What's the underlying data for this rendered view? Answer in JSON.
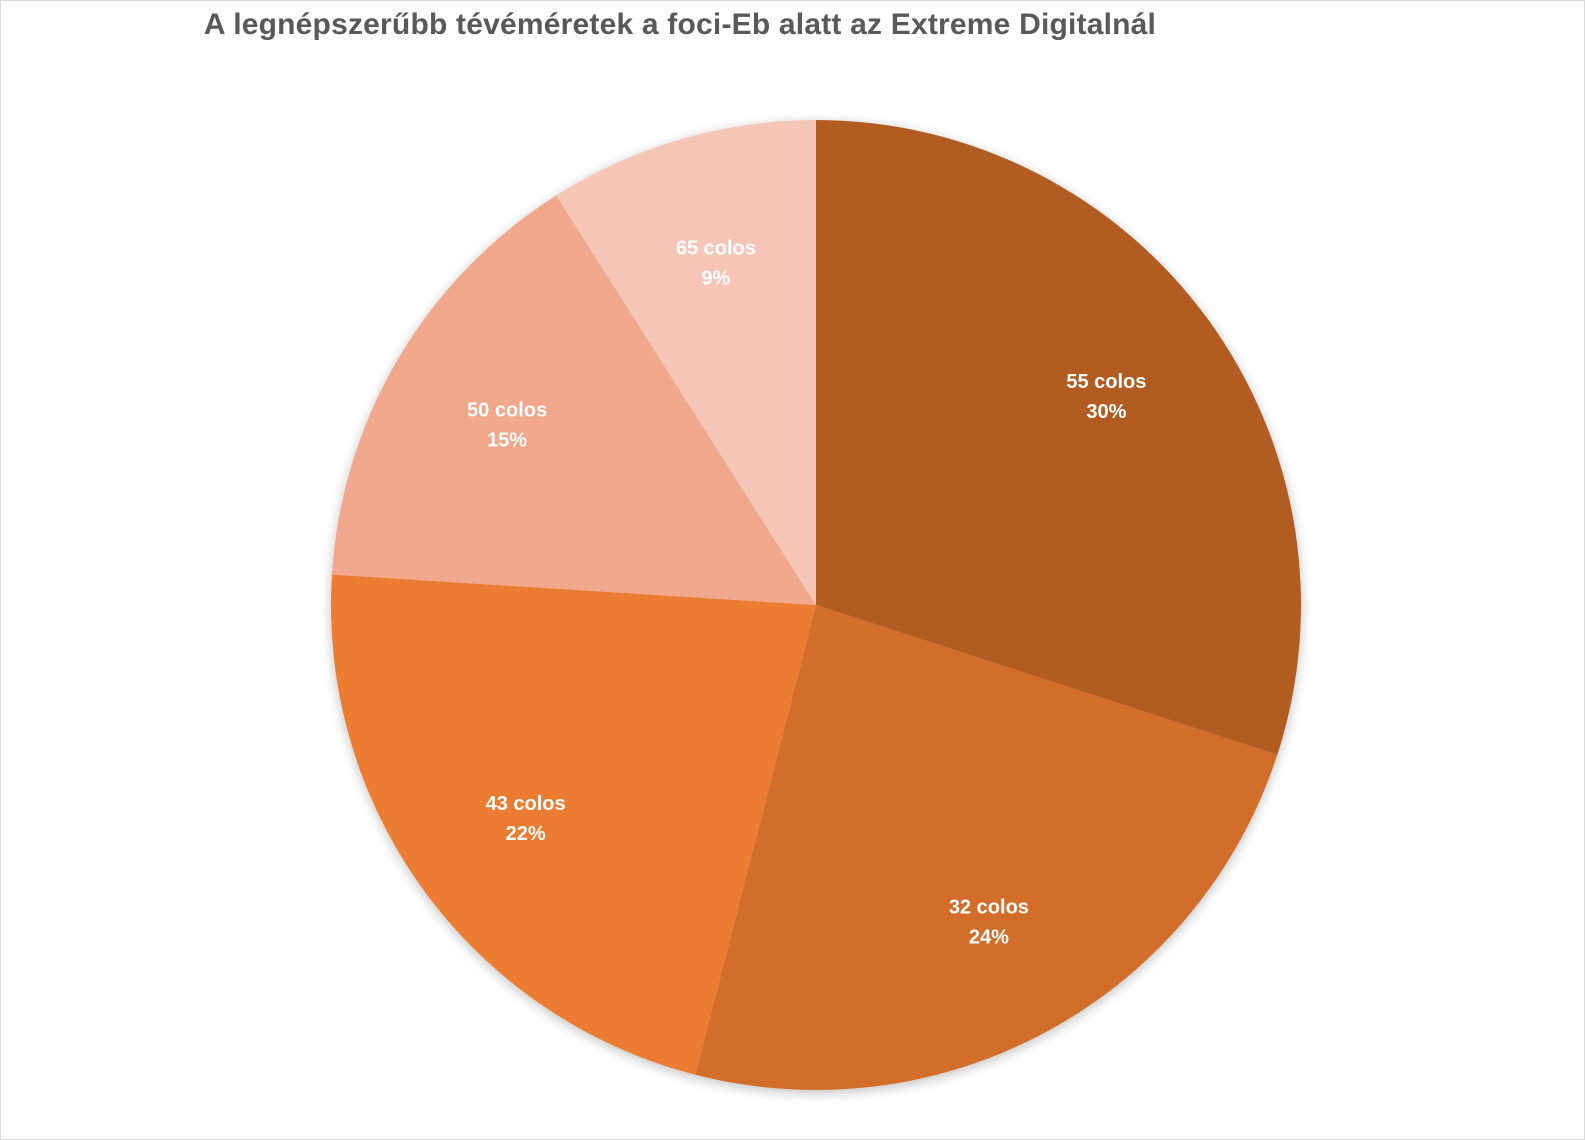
{
  "chart_data": {
    "type": "pie",
    "title": "A legnépszerűbb tévéméretek a foci-Eb alatt az Extreme Digitalnál",
    "slices": [
      {
        "label": "55 colos",
        "value": 30,
        "value_label": "30%",
        "color": "#B35C21"
      },
      {
        "label": "32 colos",
        "value": 24,
        "value_label": "24%",
        "color": "#D36D2B"
      },
      {
        "label": "43 colos",
        "value": 22,
        "value_label": "22%",
        "color": "#EC7C33"
      },
      {
        "label": "50 colos",
        "value": 15,
        "value_label": "15%",
        "color": "#F0A78B"
      },
      {
        "label": "65 colos",
        "value": 9,
        "value_label": "9%",
        "color": "#F5C6B7"
      }
    ],
    "start_angle": "12 o'clock",
    "direction": "clockwise",
    "legend": "none"
  }
}
